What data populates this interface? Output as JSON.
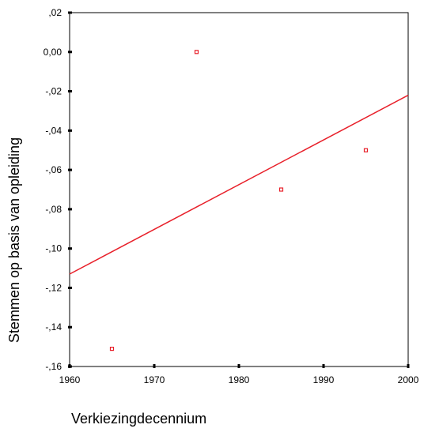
{
  "chart_data": {
    "type": "scatter",
    "xlabel": "Verkiezingdecennium",
    "ylabel": "Stemmen op basis van opleiding",
    "xlim": [
      1960,
      2000
    ],
    "ylim": [
      -0.16,
      0.02
    ],
    "x_ticks": [
      1960,
      1970,
      1980,
      1990,
      2000
    ],
    "x_tick_labels": [
      "1960",
      "1970",
      "1980",
      "1990",
      "2000"
    ],
    "y_ticks": [
      0.02,
      0.0,
      -0.02,
      -0.04,
      -0.06,
      -0.08,
      -0.1,
      -0.12,
      -0.14,
      -0.16
    ],
    "y_tick_labels": [
      ",02",
      "0,00",
      "-,02",
      "-,04",
      "-,06",
      "-,08",
      "-,10",
      "-,12",
      "-,14",
      "-,16"
    ],
    "points": [
      {
        "x": 1965,
        "y": -0.151
      },
      {
        "x": 1975,
        "y": 0.0
      },
      {
        "x": 1985,
        "y": -0.07
      },
      {
        "x": 1995,
        "y": -0.05
      }
    ],
    "fit_line": {
      "x": [
        1960,
        2000
      ],
      "y": [
        -0.113,
        -0.022
      ]
    },
    "grid": false,
    "legend": "none",
    "colors": {
      "marker": "#e8202a",
      "fit_line": "#e8202a",
      "axis": "#000000"
    }
  }
}
